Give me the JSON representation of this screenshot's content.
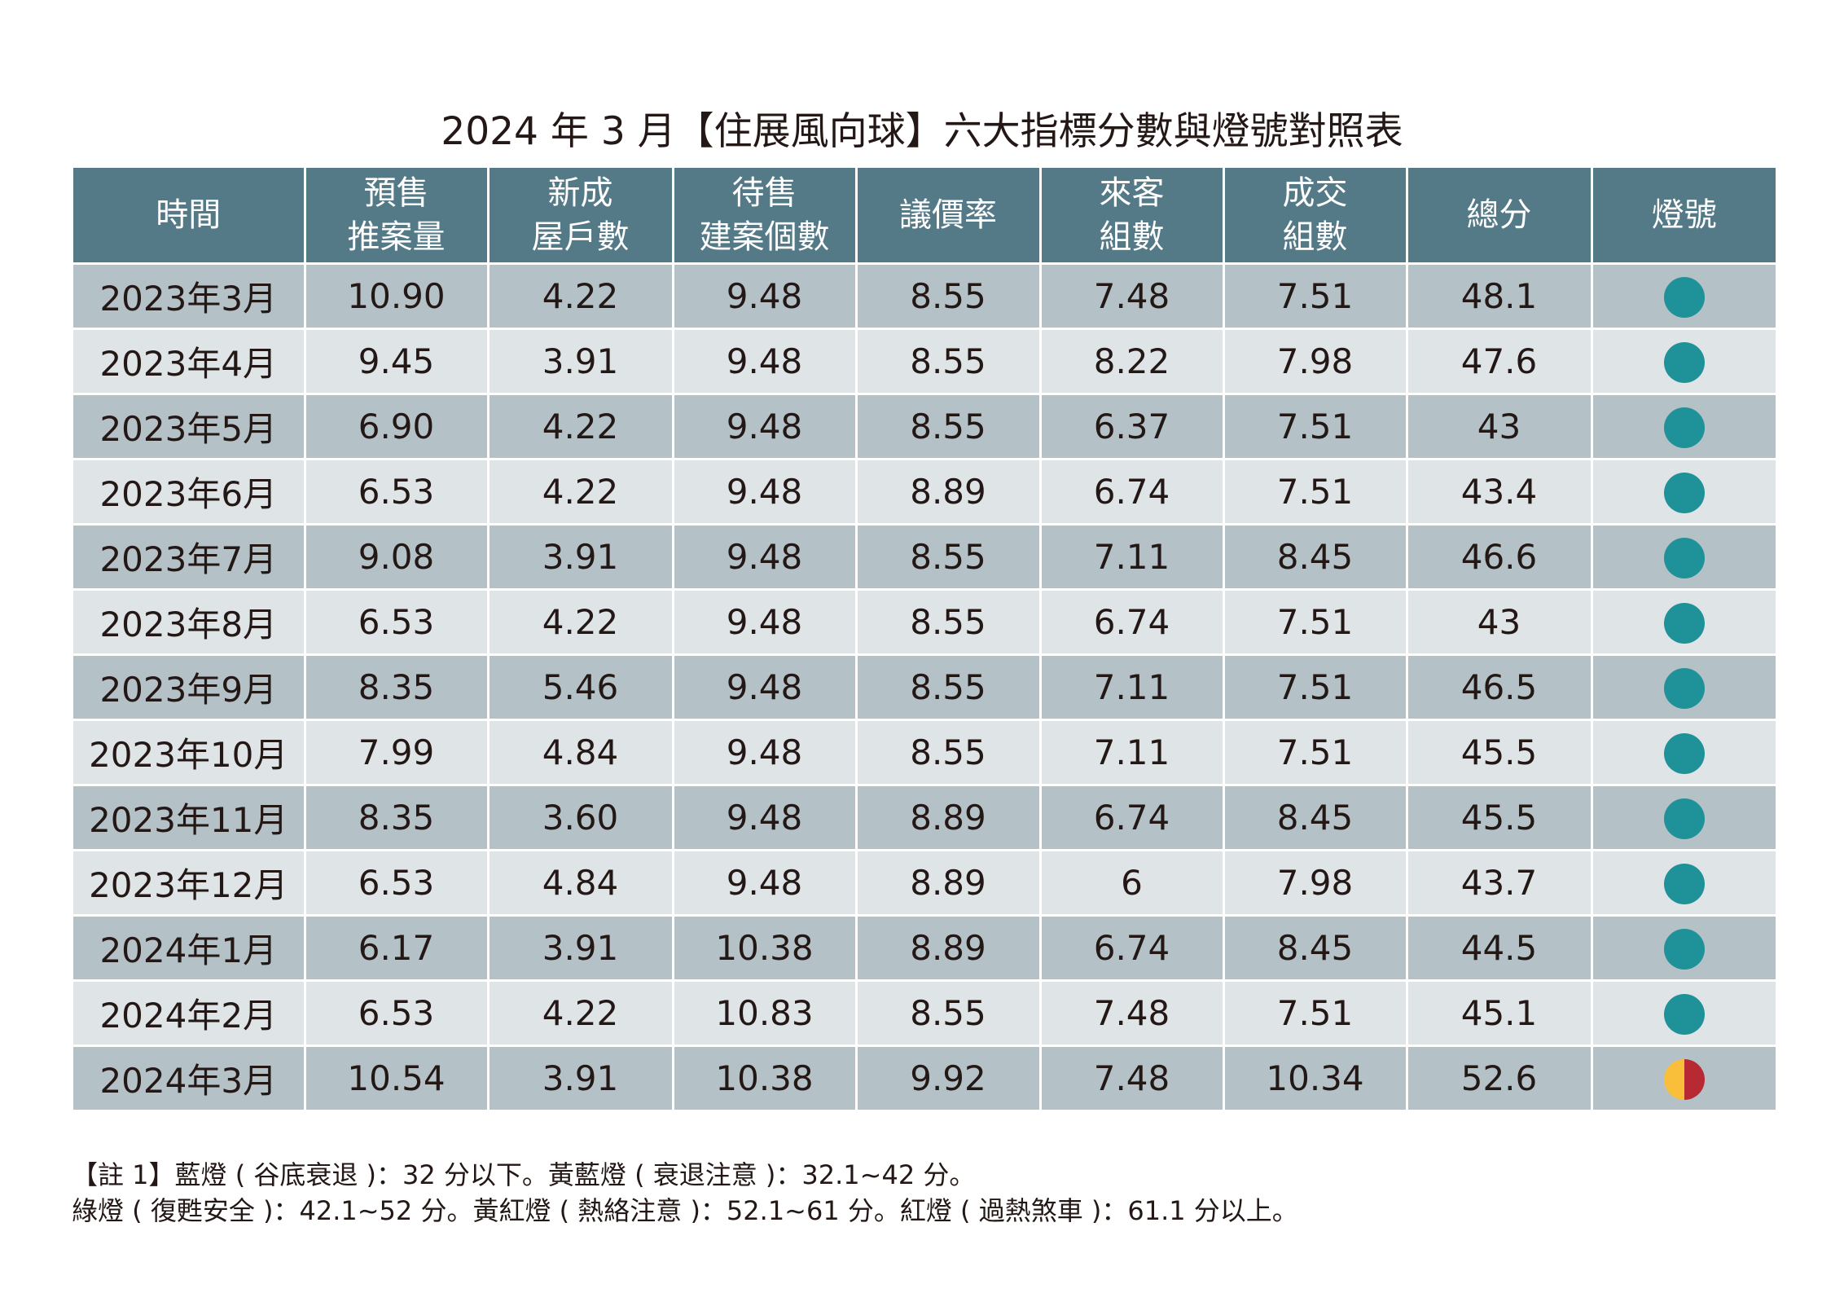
{
  "title": "2024 年 3 月【住展風向球】六大指標分數與燈號對照表",
  "colors": {
    "header": "#557a87",
    "row_dark": "#b4c1c7",
    "row_light": "#dfe4e7",
    "green_light": "#1f9199",
    "yellow": "#f9bf3b",
    "red": "#b72a33"
  },
  "headers": [
    [
      "時間"
    ],
    [
      "預售",
      "推案量"
    ],
    [
      "新成",
      "屋戶數"
    ],
    [
      "待售",
      "建案個數"
    ],
    [
      "議價率"
    ],
    [
      "來客",
      "組數"
    ],
    [
      "成交",
      "組數"
    ],
    [
      "總分"
    ],
    [
      "燈號"
    ]
  ],
  "rows": [
    {
      "cells": [
        "2023年3月",
        "10.90",
        "4.22",
        "9.48",
        "8.55",
        "7.48",
        "7.51",
        "48.1"
      ],
      "light": "green"
    },
    {
      "cells": [
        "2023年4月",
        "9.45",
        "3.91",
        "9.48",
        "8.55",
        "8.22",
        "7.98",
        "47.6"
      ],
      "light": "green"
    },
    {
      "cells": [
        "2023年5月",
        "6.90",
        "4.22",
        "9.48",
        "8.55",
        "6.37",
        "7.51",
        "43"
      ],
      "light": "green"
    },
    {
      "cells": [
        "2023年6月",
        "6.53",
        "4.22",
        "9.48",
        "8.89",
        "6.74",
        "7.51",
        "43.4"
      ],
      "light": "green"
    },
    {
      "cells": [
        "2023年7月",
        "9.08",
        "3.91",
        "9.48",
        "8.55",
        "7.11",
        "8.45",
        "46.6"
      ],
      "light": "green"
    },
    {
      "cells": [
        "2023年8月",
        "6.53",
        "4.22",
        "9.48",
        "8.55",
        "6.74",
        "7.51",
        "43"
      ],
      "light": "green"
    },
    {
      "cells": [
        "2023年9月",
        "8.35",
        "5.46",
        "9.48",
        "8.55",
        "7.11",
        "7.51",
        "46.5"
      ],
      "light": "green"
    },
    {
      "cells": [
        "2023年10月",
        "7.99",
        "4.84",
        "9.48",
        "8.55",
        "7.11",
        "7.51",
        "45.5"
      ],
      "light": "green"
    },
    {
      "cells": [
        "2023年11月",
        "8.35",
        "3.60",
        "9.48",
        "8.89",
        "6.74",
        "8.45",
        "45.5"
      ],
      "light": "green"
    },
    {
      "cells": [
        "2023年12月",
        "6.53",
        "4.84",
        "9.48",
        "8.89",
        "6",
        "7.98",
        "43.7"
      ],
      "light": "green"
    },
    {
      "cells": [
        "2024年1月",
        "6.17",
        "3.91",
        "10.38",
        "8.89",
        "6.74",
        "8.45",
        "44.5"
      ],
      "light": "green"
    },
    {
      "cells": [
        "2024年2月",
        "6.53",
        "4.22",
        "10.83",
        "8.55",
        "7.48",
        "7.51",
        "45.1"
      ],
      "light": "green"
    },
    {
      "cells": [
        "2024年3月",
        "10.54",
        "3.91",
        "10.38",
        "9.92",
        "7.48",
        "10.34",
        "52.6"
      ],
      "light": "yellow-red"
    }
  ],
  "notes": [
    "【註 1】藍燈 ( 谷底衰退 )：32 分以下。黃藍燈 ( 衰退注意 )：32.1~42 分。",
    "綠燈 ( 復甦安全 )：42.1~52 分。黃紅燈 ( 熱絡注意 )：52.1~61 分。紅燈 ( 過熱煞車 )：61.1 分以上。"
  ]
}
